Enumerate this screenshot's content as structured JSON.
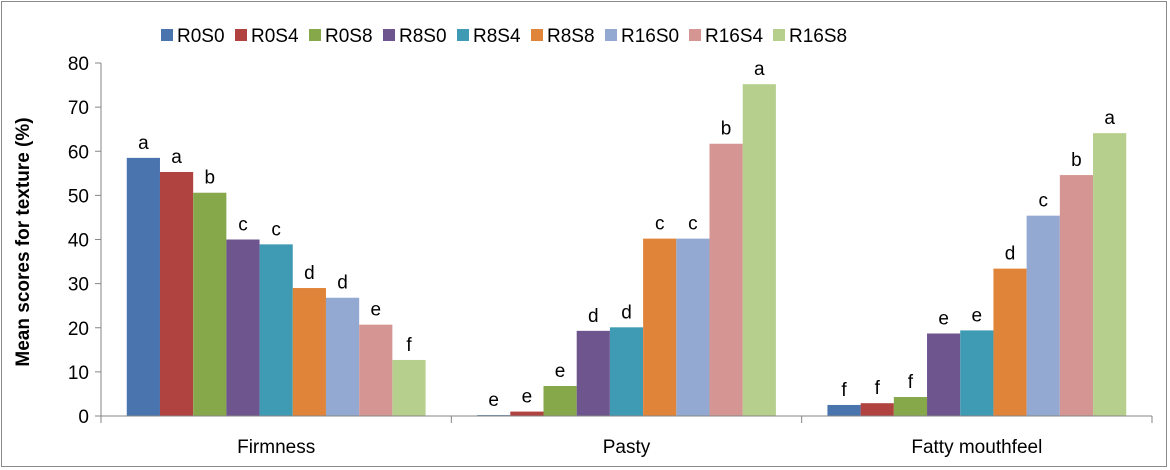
{
  "chart_data": {
    "type": "bar",
    "categories": [
      "Firmness",
      "Pasty",
      "Fatty mouthfeel"
    ],
    "ylabel": "Mean scores for texture (%)",
    "xlabel": "",
    "ylim": [
      0,
      80
    ],
    "yticks": [
      0,
      10,
      20,
      30,
      40,
      50,
      60,
      70,
      80
    ],
    "grid": false,
    "legend_position": "top",
    "series": [
      {
        "name": "R0S0",
        "color": "#4a74ad",
        "values": [
          58.5,
          0.2,
          2.5
        ],
        "labels": [
          "a",
          "e",
          "f"
        ]
      },
      {
        "name": "R0S4",
        "color": "#b0423f",
        "values": [
          55.3,
          1.0,
          2.9
        ],
        "labels": [
          "a",
          "e",
          "f"
        ]
      },
      {
        "name": "R0S8",
        "color": "#86a84a",
        "values": [
          50.6,
          6.8,
          4.3
        ],
        "labels": [
          "b",
          "e",
          "f"
        ]
      },
      {
        "name": "R8S0",
        "color": "#6f558e",
        "values": [
          40.0,
          19.3,
          18.7
        ],
        "labels": [
          "c",
          "d",
          "e"
        ]
      },
      {
        "name": "R8S4",
        "color": "#3f9bb3",
        "values": [
          38.9,
          20.1,
          19.4
        ],
        "labels": [
          "c",
          "d",
          "e"
        ]
      },
      {
        "name": "R8S8",
        "color": "#e08439",
        "values": [
          29.0,
          40.2,
          33.4
        ],
        "labels": [
          "d",
          "c",
          "d"
        ]
      },
      {
        "name": "R16S0",
        "color": "#93a9d1",
        "values": [
          26.8,
          40.2,
          45.4
        ],
        "labels": [
          "d",
          "c",
          "c"
        ]
      },
      {
        "name": "R16S4",
        "color": "#d59593",
        "values": [
          20.7,
          61.7,
          54.6
        ],
        "labels": [
          "e",
          "b",
          "b"
        ]
      },
      {
        "name": "R16S8",
        "color": "#b6cf8d",
        "values": [
          12.7,
          75.2,
          64.1
        ],
        "labels": [
          "f",
          "a",
          "a"
        ]
      }
    ]
  }
}
